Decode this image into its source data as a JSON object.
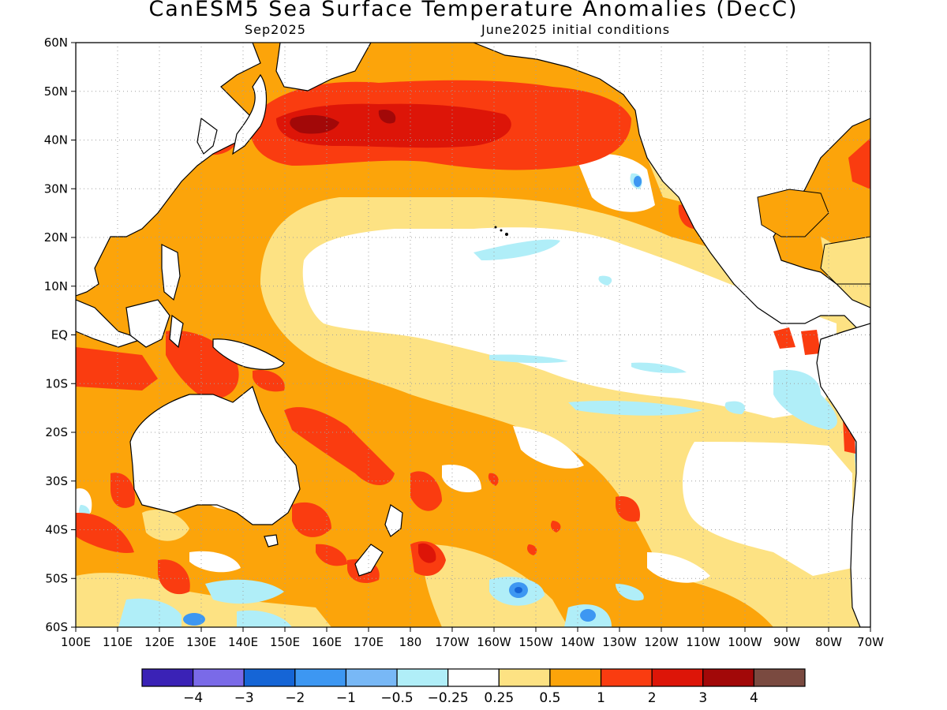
{
  "title": "CanESM5 Sea Surface Temperature Anomalies (DecC)",
  "subtitle_left": "Sep2025",
  "subtitle_right": "June2025 initial conditions",
  "lat_labels": [
    "60N",
    "50N",
    "40N",
    "30N",
    "20N",
    "10N",
    "EQ",
    "10S",
    "20S",
    "30S",
    "40S",
    "50S",
    "60S"
  ],
  "lon_labels": [
    "100E",
    "110E",
    "120E",
    "130E",
    "140E",
    "150E",
    "160E",
    "170E",
    "180",
    "170W",
    "160W",
    "150W",
    "140W",
    "130W",
    "120W",
    "110W",
    "100W",
    "90W",
    "80W",
    "70W"
  ],
  "colorbar": {
    "colors": [
      "#3a22b6",
      "#7a6ae8",
      "#1565d6",
      "#3d97f2",
      "#78b8f6",
      "#b0eef8",
      "#ffffff",
      "#fde283",
      "#fca40a",
      "#fa3c10",
      "#dd1508",
      "#a20808",
      "#7a4a40"
    ],
    "labels": [
      "−4",
      "−3",
      "−2",
      "−1",
      "−0.5",
      "−0.25",
      "0.25",
      "0.5",
      "1",
      "2",
      "3",
      "4"
    ]
  },
  "map": {
    "ocean_base_color": "#fca40a",
    "land_color": "#ffffff",
    "coast_color": "#000000",
    "grid_color": "#b0b0b0"
  }
}
